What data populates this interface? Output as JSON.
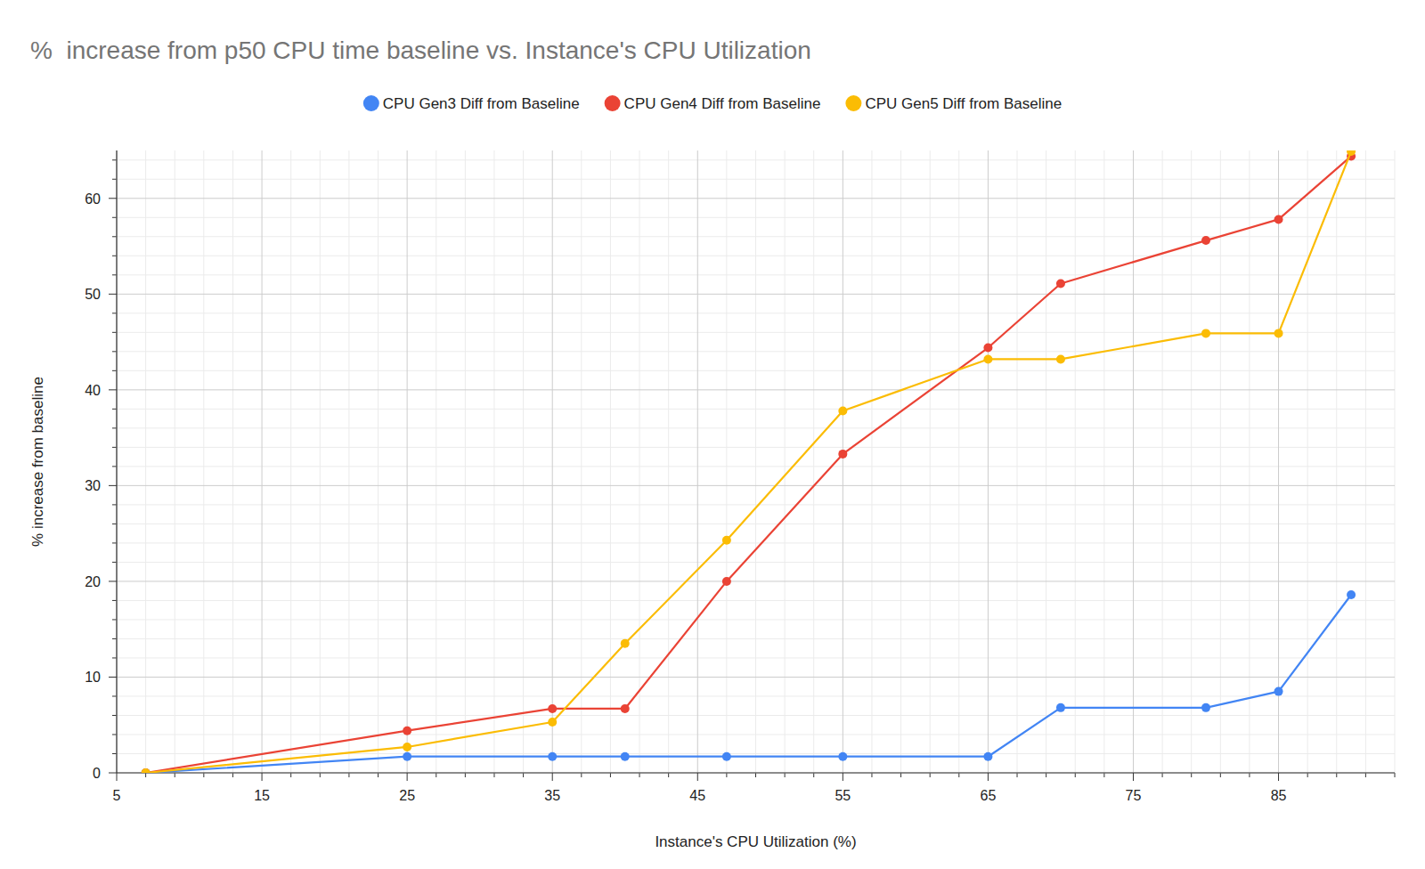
{
  "chart_data": {
    "type": "line",
    "title": "%  increase from p50 CPU time baseline vs. Instance's CPU Utilization",
    "x_label": "Instance's CPU Utilization (%)",
    "y_label": "% increase from baseline",
    "x": [
      7,
      25,
      35,
      40,
      47,
      55,
      65,
      70,
      80,
      85,
      90
    ],
    "series": [
      {
        "name": "CPU Gen3 Diff from Baseline",
        "color": "#4285f4",
        "values": [
          0,
          1.7,
          1.7,
          1.7,
          1.7,
          1.7,
          1.7,
          6.8,
          6.8,
          8.5,
          18.6
        ]
      },
      {
        "name": "CPU Gen4 Diff from Baseline",
        "color": "#ea4335",
        "values": [
          0,
          4.4,
          6.7,
          6.7,
          20,
          33.3,
          44.4,
          51.1,
          55.6,
          57.8,
          64.4
        ]
      },
      {
        "name": "CPU Gen5 Diff from Baseline",
        "color": "#fbbc04",
        "values": [
          0,
          2.7,
          5.3,
          13.5,
          24.3,
          37.8,
          43.2,
          43.2,
          45.9,
          45.9,
          64.9
        ]
      }
    ],
    "xlim": [
      5,
      93
    ],
    "xticks": [
      5,
      15,
      25,
      35,
      45,
      55,
      65,
      75,
      85
    ],
    "ylim": [
      0,
      65
    ],
    "yticks": [
      0,
      10,
      20,
      30,
      40,
      50,
      60
    ],
    "grid": true,
    "legend": "top",
    "marker": "circle"
  }
}
